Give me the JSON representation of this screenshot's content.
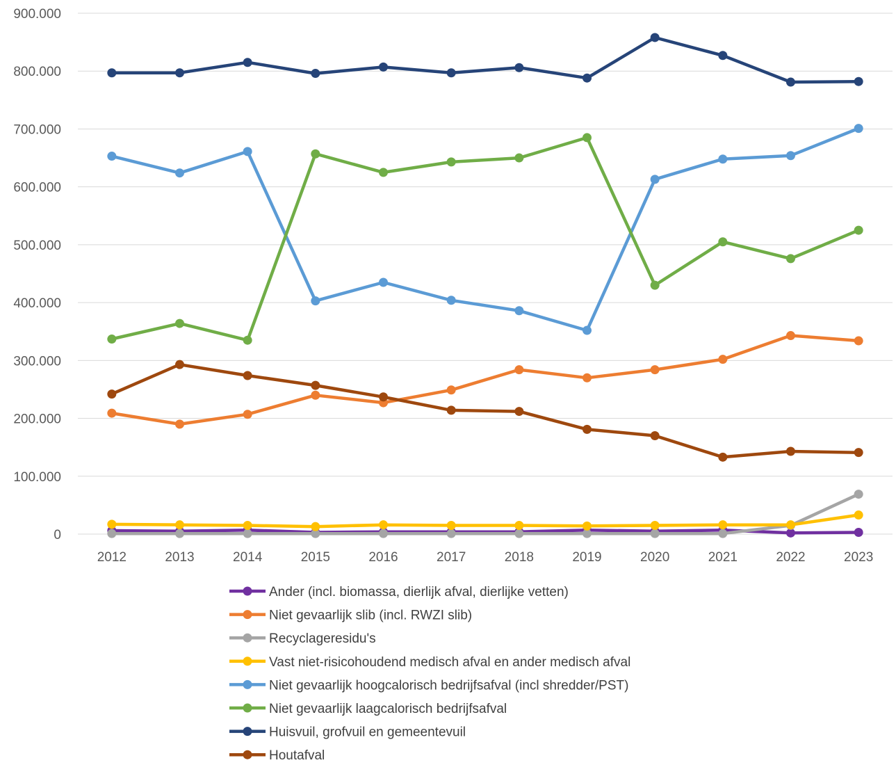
{
  "chart_data": {
    "type": "line",
    "title": "",
    "xlabel": "",
    "ylabel": "",
    "ylim": [
      0,
      900000
    ],
    "y_ticks": [
      0,
      100000,
      200000,
      300000,
      400000,
      500000,
      600000,
      700000,
      800000,
      900000
    ],
    "y_tick_labels": [
      "0",
      "100.000",
      "200.000",
      "300.000",
      "400.000",
      "500.000",
      "600.000",
      "700.000",
      "800.000",
      "900.000"
    ],
    "categories": [
      "2012",
      "2013",
      "2014",
      "2015",
      "2016",
      "2017",
      "2018",
      "2019",
      "2020",
      "2021",
      "2022",
      "2023"
    ],
    "grid": "horizontal",
    "legend_position": "bottom",
    "series": [
      {
        "name": "Ander (incl. biomassa, dierlijk afval, dierlijke vetten)",
        "color": "#7030A0",
        "values": [
          6000,
          5000,
          7000,
          3000,
          4000,
          4000,
          4000,
          7000,
          5000,
          7000,
          2000,
          3000
        ]
      },
      {
        "name": "Niet gevaarlijk slib (incl. RWZI slib)",
        "color": "#ED7D31",
        "values": [
          209000,
          190000,
          207000,
          240000,
          227000,
          249000,
          284000,
          270000,
          284000,
          302000,
          343000,
          334000
        ]
      },
      {
        "name": "Recyclageresidu's",
        "color": "#A5A5A5",
        "values": [
          1000,
          1000,
          1000,
          1000,
          1000,
          1000,
          1000,
          1000,
          1000,
          1000,
          15000,
          69000
        ]
      },
      {
        "name": "Vast niet-risicohoudend medisch afval en ander medisch afval",
        "color": "#FFC000",
        "values": [
          17000,
          16000,
          15000,
          13000,
          16000,
          15000,
          15000,
          14000,
          15000,
          16000,
          16000,
          33000
        ]
      },
      {
        "name": "Niet gevaarlijk hoogcalorisch bedrijfsafval (incl shredder/PST)",
        "color": "#5B9BD5",
        "values": [
          653000,
          624000,
          661000,
          403000,
          435000,
          404000,
          386000,
          352000,
          613000,
          648000,
          654000,
          701000
        ]
      },
      {
        "name": "Niet gevaarlijk laagcalorisch bedrijfsafval",
        "color": "#70AD47",
        "values": [
          337000,
          364000,
          335000,
          657000,
          625000,
          643000,
          650000,
          685000,
          430000,
          505000,
          476000,
          525000
        ]
      },
      {
        "name": "Huisvuil, grofvuil en gemeentevuil",
        "color": "#264478",
        "values": [
          797000,
          797000,
          815000,
          796000,
          807000,
          797000,
          806000,
          788000,
          858000,
          827000,
          781000,
          782000
        ]
      },
      {
        "name": "Houtafval",
        "color": "#9E480E",
        "values": [
          242000,
          293000,
          274000,
          257000,
          237000,
          214000,
          212000,
          181000,
          170000,
          133000,
          143000,
          141000
        ]
      }
    ]
  }
}
